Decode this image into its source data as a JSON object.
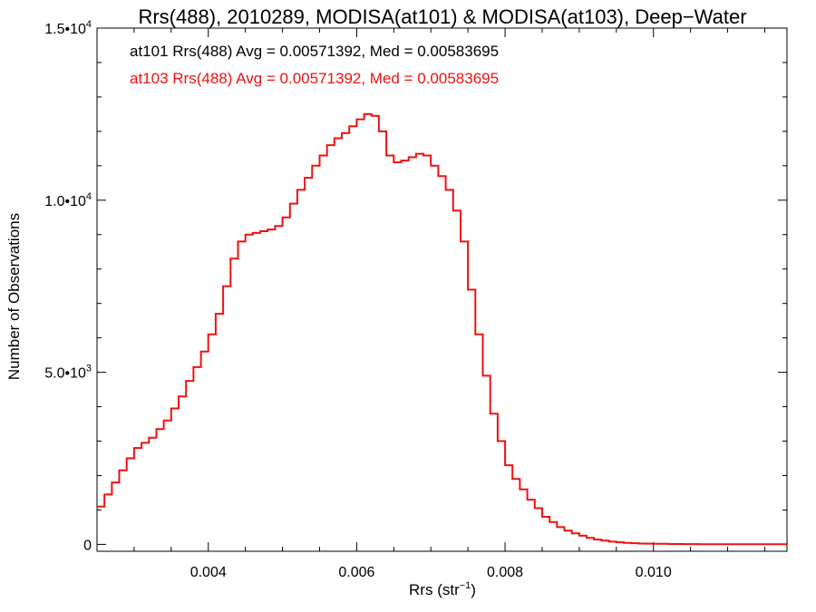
{
  "chart_data": {
    "type": "line",
    "step": true,
    "title": "Rrs(488), 2010289, MODISA(at101) & MODISA(at103), Deep−Water",
    "xlabel_main": "Rrs (str",
    "xlabel_sup": "−1",
    "xlabel_end": ")",
    "ylabel": "Number of Observations",
    "xlim": [
      0.0025,
      0.0118
    ],
    "ylim": [
      -200,
      15000
    ],
    "x_ticks": [
      {
        "value": 0.004,
        "label": "0.004"
      },
      {
        "value": 0.006,
        "label": "0.006"
      },
      {
        "value": 0.008,
        "label": "0.008"
      },
      {
        "value": 0.01,
        "label": "0.010"
      }
    ],
    "y_ticks": [
      {
        "value": 0,
        "label": "0",
        "sup": ""
      },
      {
        "value": 5000,
        "label": "5.0•10",
        "sup": "3"
      },
      {
        "value": 10000,
        "label": "1.0•10",
        "sup": "4"
      },
      {
        "value": 15000,
        "label": "1.5•10",
        "sup": "4"
      }
    ],
    "annotations": [
      {
        "text": "at101 Rrs(488) Avg = 0.00571392, Med = 0.00583695",
        "color": "#000000"
      },
      {
        "text": "at103 Rrs(488) Avg = 0.00571392, Med = 0.00583695",
        "color": "#ee1111"
      }
    ],
    "series": [
      {
        "color": "#ee1111",
        "x": [
          0.0025,
          0.0026,
          0.0027,
          0.0028,
          0.0029,
          0.003,
          0.0031,
          0.0032,
          0.0033,
          0.0034,
          0.0035,
          0.0036,
          0.0037,
          0.0038,
          0.0039,
          0.004,
          0.0041,
          0.0042,
          0.0043,
          0.0044,
          0.0045,
          0.0046,
          0.0047,
          0.0048,
          0.0049,
          0.005,
          0.0051,
          0.0052,
          0.0053,
          0.0054,
          0.0055,
          0.0056,
          0.0057,
          0.0058,
          0.0059,
          0.006,
          0.0061,
          0.0062,
          0.0063,
          0.0064,
          0.0065,
          0.0066,
          0.0067,
          0.0068,
          0.0069,
          0.007,
          0.0071,
          0.0072,
          0.0073,
          0.0074,
          0.0075,
          0.0076,
          0.0077,
          0.0078,
          0.0079,
          0.008,
          0.0081,
          0.0082,
          0.0083,
          0.0084,
          0.0085,
          0.0086,
          0.0087,
          0.0088,
          0.0089,
          0.009,
          0.0091,
          0.0092,
          0.0093,
          0.0094,
          0.0095,
          0.0096,
          0.0097,
          0.0098,
          0.0099,
          0.01,
          0.0102,
          0.0104,
          0.0106,
          0.0108,
          0.011,
          0.0112,
          0.0114,
          0.0116,
          0.0118
        ],
        "y": [
          1100,
          1450,
          1800,
          2150,
          2500,
          2800,
          2950,
          3100,
          3350,
          3600,
          3950,
          4300,
          4750,
          5150,
          5600,
          6100,
          6700,
          7500,
          8300,
          8800,
          9000,
          9050,
          9100,
          9150,
          9250,
          9500,
          9900,
          10300,
          10650,
          11000,
          11300,
          11600,
          11800,
          11950,
          12150,
          12350,
          12500,
          12450,
          12000,
          11300,
          11100,
          11150,
          11250,
          11350,
          11300,
          11000,
          10700,
          10300,
          9700,
          8800,
          7400,
          6100,
          4900,
          3800,
          3000,
          2300,
          1900,
          1600,
          1300,
          1050,
          800,
          650,
          500,
          400,
          320,
          250,
          190,
          140,
          110,
          80,
          60,
          45,
          35,
          25,
          20,
          15,
          10,
          8,
          6,
          5,
          4,
          3,
          2,
          2,
          1
        ]
      }
    ]
  }
}
